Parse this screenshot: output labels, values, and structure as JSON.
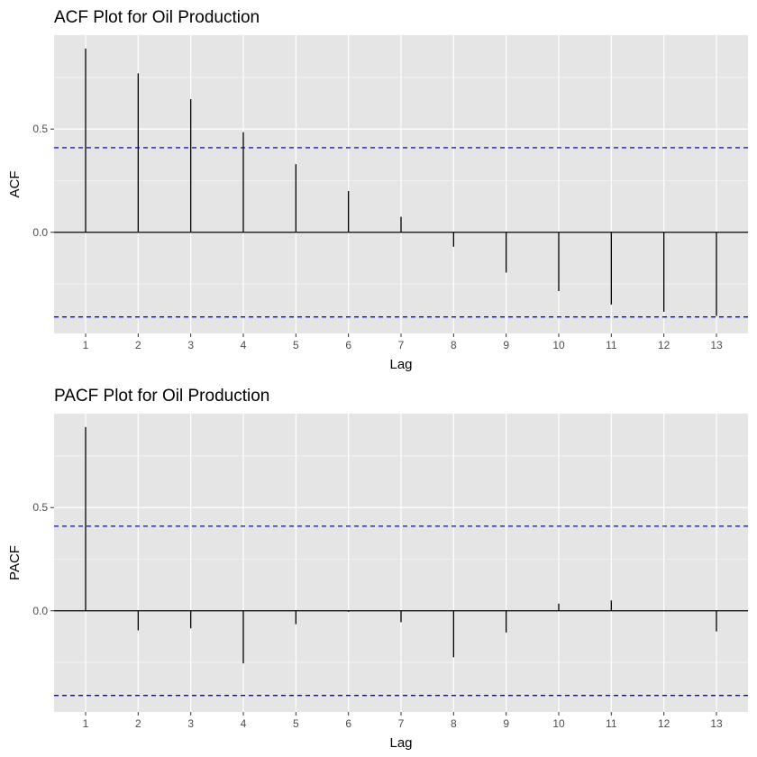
{
  "chart_data": [
    {
      "type": "bar",
      "title": "ACF Plot for Oil Production",
      "xlabel": "Lag",
      "ylabel": "ACF",
      "x": [
        1,
        2,
        3,
        4,
        5,
        6,
        7,
        8,
        9,
        10,
        11,
        12,
        13
      ],
      "x_tick_labels": [
        "1",
        "2",
        "3",
        "4",
        "5",
        "6",
        "7",
        "8",
        "9",
        "10",
        "11",
        "12",
        "13"
      ],
      "values": [
        0.89,
        0.77,
        0.645,
        0.485,
        0.33,
        0.2,
        0.075,
        -0.07,
        -0.195,
        -0.285,
        -0.35,
        -0.385,
        -0.405
      ],
      "y_tick_values": [
        0.0,
        0.5
      ],
      "y_tick_labels": [
        "0.0",
        "0.5"
      ],
      "ylim": [
        -0.49,
        0.955
      ],
      "xlim": [
        0.4,
        13.6
      ],
      "confidence_bound": 0.41,
      "grid": true,
      "colors": {
        "panel_background": "#e5e5e5",
        "grid": "#ffffff",
        "bars": "#000000",
        "confidence_lines": "#0000ff"
      }
    },
    {
      "type": "bar",
      "title": "PACF Plot for Oil Production",
      "xlabel": "Lag",
      "ylabel": "PACF",
      "x": [
        1,
        2,
        3,
        4,
        5,
        6,
        7,
        8,
        9,
        10,
        11,
        12,
        13
      ],
      "x_tick_labels": [
        "1",
        "2",
        "3",
        "4",
        "5",
        "6",
        "7",
        "8",
        "9",
        "10",
        "11",
        "12",
        "13"
      ],
      "values": [
        0.89,
        -0.095,
        -0.085,
        -0.255,
        -0.065,
        -0.005,
        -0.055,
        -0.225,
        -0.105,
        0.035,
        0.05,
        0.0,
        -0.1
      ],
      "y_tick_values": [
        0.0,
        0.5
      ],
      "y_tick_labels": [
        "0.0",
        "0.5"
      ],
      "ylim": [
        -0.49,
        0.955
      ],
      "xlim": [
        0.4,
        13.6
      ],
      "confidence_bound": 0.41,
      "grid": true,
      "colors": {
        "panel_background": "#e5e5e5",
        "grid": "#ffffff",
        "bars": "#000000",
        "confidence_lines": "#0000ff"
      }
    }
  ]
}
